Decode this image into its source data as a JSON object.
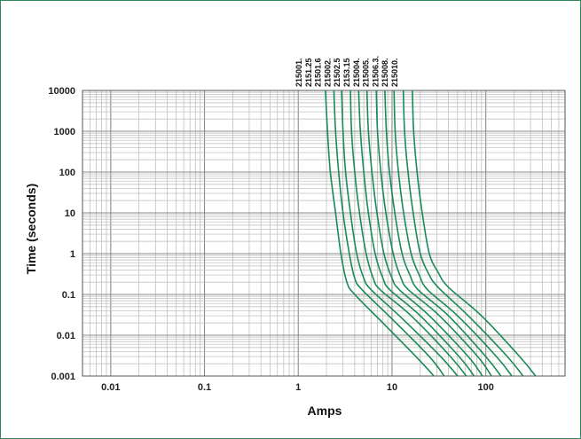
{
  "chart_data": {
    "type": "line",
    "title": "",
    "xlabel": "Amps",
    "ylabel": "Time (seconds)",
    "x_scale": "log",
    "y_scale": "log",
    "xlim": [
      0.005,
      700
    ],
    "ylim": [
      0.001,
      10000
    ],
    "grid": true,
    "legend": "series labels at top of curves",
    "x_tick_labels": [
      "0.01",
      "0.1",
      "1",
      "10",
      "100"
    ],
    "y_tick_labels": [
      "0.001",
      "0.01",
      "0.1",
      "1",
      "10",
      "100",
      "1000",
      "10000"
    ],
    "line_color": "#1a8a57",
    "series": [
      {
        "name": "215001.",
        "points": [
          [
            1.95,
            10000
          ],
          [
            2.05,
            1000
          ],
          [
            2.2,
            100
          ],
          [
            2.5,
            10
          ],
          [
            2.85,
            1
          ],
          [
            3.3,
            0.2
          ],
          [
            4.0,
            0.1
          ],
          [
            8.0,
            0.02
          ],
          [
            18,
            0.003
          ],
          [
            28,
            0.001
          ]
        ]
      },
      {
        "name": "2151.25",
        "points": [
          [
            2.4,
            10000
          ],
          [
            2.5,
            1000
          ],
          [
            2.7,
            100
          ],
          [
            3.0,
            10
          ],
          [
            3.5,
            1
          ],
          [
            4.0,
            0.25
          ],
          [
            4.8,
            0.13
          ],
          [
            10,
            0.025
          ],
          [
            25,
            0.003
          ],
          [
            36,
            0.001
          ]
        ]
      },
      {
        "name": "21501.6",
        "points": [
          [
            2.9,
            10000
          ],
          [
            3.0,
            1000
          ],
          [
            3.2,
            100
          ],
          [
            3.6,
            10
          ],
          [
            4.2,
            1
          ],
          [
            5.0,
            0.25
          ],
          [
            6.0,
            0.13
          ],
          [
            13,
            0.025
          ],
          [
            33,
            0.003
          ],
          [
            50,
            0.001
          ]
        ]
      },
      {
        "name": "215002.",
        "points": [
          [
            3.6,
            10000
          ],
          [
            3.7,
            1000
          ],
          [
            4.0,
            100
          ],
          [
            4.5,
            10
          ],
          [
            5.3,
            1
          ],
          [
            6.3,
            0.25
          ],
          [
            7.5,
            0.13
          ],
          [
            16,
            0.03
          ],
          [
            42,
            0.003
          ],
          [
            62,
            0.001
          ]
        ]
      },
      {
        "name": "21502.5",
        "points": [
          [
            4.4,
            10000
          ],
          [
            4.6,
            1000
          ],
          [
            5.0,
            100
          ],
          [
            5.6,
            10
          ],
          [
            6.6,
            1
          ],
          [
            8.0,
            0.25
          ],
          [
            9.5,
            0.13
          ],
          [
            20,
            0.03
          ],
          [
            52,
            0.003
          ],
          [
            75,
            0.001
          ]
        ]
      },
      {
        "name": "2153.15",
        "points": [
          [
            5.4,
            10000
          ],
          [
            5.6,
            1000
          ],
          [
            6.1,
            100
          ],
          [
            6.9,
            10
          ],
          [
            8.2,
            1
          ],
          [
            10,
            0.25
          ],
          [
            12,
            0.13
          ],
          [
            25,
            0.03
          ],
          [
            65,
            0.003
          ],
          [
            92,
            0.001
          ]
        ]
      },
      {
        "name": "215004.",
        "points": [
          [
            6.8,
            10000
          ],
          [
            7.0,
            1000
          ],
          [
            7.6,
            100
          ],
          [
            8.6,
            10
          ],
          [
            10.3,
            1
          ],
          [
            12.5,
            0.25
          ],
          [
            15,
            0.13
          ],
          [
            32,
            0.03
          ],
          [
            82,
            0.003
          ],
          [
            115,
            0.001
          ]
        ]
      },
      {
        "name": "215005.",
        "points": [
          [
            8.4,
            10000
          ],
          [
            8.7,
            1000
          ],
          [
            9.4,
            100
          ],
          [
            10.7,
            10
          ],
          [
            12.8,
            1
          ],
          [
            15.5,
            0.3
          ],
          [
            19,
            0.13
          ],
          [
            40,
            0.03
          ],
          [
            100,
            0.003
          ],
          [
            145,
            0.001
          ]
        ]
      },
      {
        "name": "21506.3.",
        "points": [
          [
            10.5,
            10000
          ],
          [
            10.8,
            1000
          ],
          [
            11.7,
            100
          ],
          [
            13.3,
            10
          ],
          [
            16,
            1
          ],
          [
            19.5,
            0.3
          ],
          [
            24,
            0.13
          ],
          [
            50,
            0.03
          ],
          [
            130,
            0.003
          ],
          [
            190,
            0.001
          ]
        ]
      },
      {
        "name": "215008.",
        "points": [
          [
            13.2,
            10000
          ],
          [
            13.6,
            1000
          ],
          [
            14.8,
            100
          ],
          [
            16.8,
            10
          ],
          [
            20,
            1
          ],
          [
            25,
            0.3
          ],
          [
            31,
            0.15
          ],
          [
            65,
            0.03
          ],
          [
            170,
            0.003
          ],
          [
            250,
            0.001
          ]
        ]
      },
      {
        "name": "215010.",
        "points": [
          [
            16.5,
            10000
          ],
          [
            17,
            1000
          ],
          [
            18.5,
            100
          ],
          [
            21,
            10
          ],
          [
            25,
            1
          ],
          [
            31,
            0.35
          ],
          [
            40,
            0.15
          ],
          [
            90,
            0.03
          ],
          [
            230,
            0.003
          ],
          [
            340,
            0.001
          ]
        ]
      }
    ]
  }
}
